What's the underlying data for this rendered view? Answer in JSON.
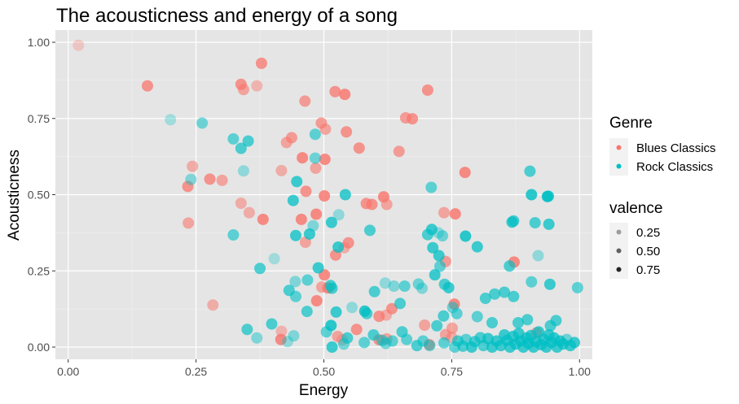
{
  "chart_data": {
    "type": "scatter",
    "title": "The acousticness and energy of a song",
    "xlabel": "Energy",
    "ylabel": "Acousticness",
    "xlim": [
      -0.025,
      1.025
    ],
    "ylim": [
      -0.04,
      1.04
    ],
    "x_ticks": [
      0,
      0.25,
      0.5,
      0.75,
      1.0
    ],
    "x_tick_labels": [
      "0.00",
      "0.25",
      "0.50",
      "0.75",
      "1.00"
    ],
    "y_ticks": [
      0,
      0.25,
      0.5,
      0.75,
      1.0
    ],
    "y_tick_labels": [
      "0.00",
      "0.25",
      "0.50",
      "0.75",
      "1.00"
    ],
    "grid": true,
    "panel_background": "#E5E5E5",
    "legend": {
      "position": "right",
      "color_title": "Genre",
      "alpha_title": "valence",
      "alpha_levels": [
        {
          "label": "0.25",
          "alpha": 0.35
        },
        {
          "label": "0.50",
          "alpha": 0.6
        },
        {
          "label": "0.75",
          "alpha": 0.85
        }
      ]
    },
    "series": [
      {
        "name": "Blues Classics",
        "color": "#F8766D",
        "points": [
          [
            0.02,
            0.99,
            0.2
          ],
          [
            0.155,
            0.857,
            0.8
          ],
          [
            0.378,
            0.931,
            0.8
          ],
          [
            0.338,
            0.862,
            0.8
          ],
          [
            0.343,
            0.845,
            0.6
          ],
          [
            0.369,
            0.857,
            0.4
          ],
          [
            0.463,
            0.807,
            0.7
          ],
          [
            0.522,
            0.838,
            0.8
          ],
          [
            0.541,
            0.829,
            0.9
          ],
          [
            0.703,
            0.843,
            0.8
          ],
          [
            0.66,
            0.752,
            0.7
          ],
          [
            0.673,
            0.749,
            0.8
          ],
          [
            0.495,
            0.735,
            0.7
          ],
          [
            0.503,
            0.715,
            0.6
          ],
          [
            0.544,
            0.706,
            0.8
          ],
          [
            0.437,
            0.687,
            0.7
          ],
          [
            0.427,
            0.671,
            0.6
          ],
          [
            0.569,
            0.653,
            0.8
          ],
          [
            0.647,
            0.642,
            0.7
          ],
          [
            0.458,
            0.621,
            0.9
          ],
          [
            0.502,
            0.616,
            0.9
          ],
          [
            0.484,
            0.587,
            0.6
          ],
          [
            0.243,
            0.593,
            0.5
          ],
          [
            0.417,
            0.579,
            0.5
          ],
          [
            0.776,
            0.573,
            0.9
          ],
          [
            0.277,
            0.551,
            0.8
          ],
          [
            0.301,
            0.547,
            0.6
          ],
          [
            0.234,
            0.527,
            0.8
          ],
          [
            0.465,
            0.511,
            0.8
          ],
          [
            0.501,
            0.496,
            0.9
          ],
          [
            0.338,
            0.472,
            0.5
          ],
          [
            0.583,
            0.471,
            0.8
          ],
          [
            0.594,
            0.468,
            0.8
          ],
          [
            0.617,
            0.493,
            0.9
          ],
          [
            0.623,
            0.468,
            0.6
          ],
          [
            0.354,
            0.441,
            0.5
          ],
          [
            0.735,
            0.441,
            0.6
          ],
          [
            0.757,
            0.437,
            0.9
          ],
          [
            0.485,
            0.436,
            0.9
          ],
          [
            0.381,
            0.419,
            0.9
          ],
          [
            0.456,
            0.419,
            0.9
          ],
          [
            0.235,
            0.407,
            0.6
          ],
          [
            0.464,
            0.344,
            0.6
          ],
          [
            0.548,
            0.342,
            0.8
          ],
          [
            0.54,
            0.326,
            0.5
          ],
          [
            0.523,
            0.302,
            0.8
          ],
          [
            0.738,
            0.281,
            0.7
          ],
          [
            0.872,
            0.279,
            0.9
          ],
          [
            0.501,
            0.237,
            0.9
          ],
          [
            0.496,
            0.197,
            0.6
          ],
          [
            0.508,
            0.194,
            0.9
          ],
          [
            0.283,
            0.138,
            0.5
          ],
          [
            0.755,
            0.141,
            0.9
          ],
          [
            0.486,
            0.152,
            0.9
          ],
          [
            0.633,
            0.126,
            0.8
          ],
          [
            0.608,
            0.101,
            0.8
          ],
          [
            0.622,
            0.105,
            0.5
          ],
          [
            0.564,
            0.058,
            0.8
          ],
          [
            0.417,
            0.052,
            0.4
          ],
          [
            0.751,
            0.062,
            0.6
          ],
          [
            0.738,
            0.041,
            0.6
          ],
          [
            0.416,
            0.025,
            0.9
          ],
          [
            0.527,
            0.035,
            0.6
          ],
          [
            0.536,
            0.024,
            0.4
          ],
          [
            0.608,
            0.024,
            0.8
          ],
          [
            0.623,
            0.027,
            0.6
          ],
          [
            0.697,
            0.072,
            0.6
          ],
          [
            0.706,
            0.008,
            0.8
          ],
          [
            0.916,
            0.047,
            0.7
          ],
          [
            0.75,
            0.032,
            0.5
          ]
        ]
      },
      {
        "name": "Rock Classics",
        "color": "#00BFC4",
        "points": [
          [
            0.2,
            0.746,
            0.2
          ],
          [
            0.262,
            0.735,
            0.5
          ],
          [
            0.323,
            0.683,
            0.6
          ],
          [
            0.338,
            0.652,
            0.7
          ],
          [
            0.352,
            0.676,
            0.7
          ],
          [
            0.483,
            0.698,
            0.6
          ],
          [
            0.483,
            0.62,
            0.5
          ],
          [
            0.24,
            0.55,
            0.4
          ],
          [
            0.343,
            0.578,
            0.3
          ],
          [
            0.447,
            0.543,
            0.8
          ],
          [
            0.44,
            0.481,
            0.8
          ],
          [
            0.542,
            0.5,
            0.8
          ],
          [
            0.71,
            0.524,
            0.6
          ],
          [
            0.479,
            0.398,
            0.4
          ],
          [
            0.515,
            0.409,
            0.8
          ],
          [
            0.529,
            0.434,
            0.3
          ],
          [
            0.59,
            0.383,
            0.7
          ],
          [
            0.323,
            0.368,
            0.6
          ],
          [
            0.445,
            0.366,
            0.8
          ],
          [
            0.472,
            0.371,
            0.8
          ],
          [
            0.703,
            0.369,
            0.7
          ],
          [
            0.711,
            0.386,
            0.8
          ],
          [
            0.724,
            0.375,
            0.3
          ],
          [
            0.732,
            0.365,
            0.5
          ],
          [
            0.777,
            0.364,
            0.9
          ],
          [
            0.8,
            0.329,
            0.8
          ],
          [
            0.868,
            0.41,
            0.8
          ],
          [
            0.871,
            0.414,
            0.7
          ],
          [
            0.913,
            0.408,
            0.7
          ],
          [
            0.94,
            0.403,
            0.8
          ],
          [
            0.903,
            0.577,
            0.7
          ],
          [
            0.906,
            0.5,
            0.9
          ],
          [
            0.937,
            0.494,
            0.9
          ],
          [
            0.939,
            0.495,
            0.8
          ],
          [
            0.713,
            0.326,
            0.8
          ],
          [
            0.725,
            0.3,
            0.8
          ],
          [
            0.528,
            0.328,
            0.8
          ],
          [
            0.403,
            0.29,
            0.2
          ],
          [
            0.375,
            0.258,
            0.7
          ],
          [
            0.489,
            0.26,
            0.8
          ],
          [
            0.727,
            0.265,
            0.6
          ],
          [
            0.717,
            0.237,
            0.8
          ],
          [
            0.863,
            0.266,
            0.7
          ],
          [
            0.919,
            0.3,
            0.3
          ],
          [
            0.468,
            0.22,
            0.6
          ],
          [
            0.444,
            0.215,
            0.4
          ],
          [
            0.432,
            0.186,
            0.7
          ],
          [
            0.445,
            0.166,
            0.6
          ],
          [
            0.513,
            0.202,
            0.7
          ],
          [
            0.516,
            0.193,
            0.7
          ],
          [
            0.599,
            0.182,
            0.7
          ],
          [
            0.62,
            0.21,
            0.3
          ],
          [
            0.637,
            0.2,
            0.4
          ],
          [
            0.658,
            0.2,
            0.6
          ],
          [
            0.685,
            0.207,
            0.5
          ],
          [
            0.692,
            0.193,
            0.4
          ],
          [
            0.736,
            0.206,
            0.7
          ],
          [
            0.744,
            0.195,
            0.8
          ],
          [
            0.906,
            0.214,
            0.6
          ],
          [
            0.942,
            0.206,
            0.8
          ],
          [
            0.996,
            0.195,
            0.6
          ],
          [
            0.816,
            0.16,
            0.7
          ],
          [
            0.834,
            0.174,
            0.7
          ],
          [
            0.853,
            0.18,
            0.7
          ],
          [
            0.871,
            0.166,
            0.7
          ],
          [
            0.467,
            0.117,
            0.7
          ],
          [
            0.524,
            0.115,
            0.8
          ],
          [
            0.555,
            0.13,
            0.3
          ],
          [
            0.58,
            0.118,
            0.9
          ],
          [
            0.584,
            0.11,
            0.7
          ],
          [
            0.649,
            0.143,
            0.7
          ],
          [
            0.734,
            0.102,
            0.7
          ],
          [
            0.752,
            0.13,
            0.5
          ],
          [
            0.76,
            0.11,
            0.6
          ],
          [
            0.8,
            0.1,
            0.6
          ],
          [
            0.829,
            0.08,
            0.7
          ],
          [
            0.88,
            0.08,
            0.7
          ],
          [
            0.898,
            0.09,
            0.7
          ],
          [
            0.943,
            0.07,
            0.7
          ],
          [
            0.954,
            0.087,
            0.7
          ],
          [
            0.35,
            0.058,
            0.7
          ],
          [
            0.369,
            0.03,
            0.4
          ],
          [
            0.398,
            0.076,
            0.7
          ],
          [
            0.429,
            0.018,
            0.3
          ],
          [
            0.441,
            0.037,
            0.4
          ],
          [
            0.505,
            0.05,
            0.6
          ],
          [
            0.514,
            0.071,
            0.9
          ],
          [
            0.516,
            0.0,
            0.8
          ],
          [
            0.539,
            0.01,
            0.5
          ],
          [
            0.546,
            0.03,
            0.7
          ],
          [
            0.579,
            0.015,
            0.6
          ],
          [
            0.597,
            0.04,
            0.7
          ],
          [
            0.614,
            0.022,
            0.6
          ],
          [
            0.621,
            0.012,
            0.5
          ],
          [
            0.634,
            0.02,
            0.6
          ],
          [
            0.653,
            0.05,
            0.7
          ],
          [
            0.662,
            0.025,
            0.6
          ],
          [
            0.682,
            0.005,
            0.7
          ],
          [
            0.694,
            0.02,
            0.6
          ],
          [
            0.707,
            0.005,
            0.5
          ],
          [
            0.721,
            0.07,
            0.7
          ],
          [
            0.735,
            0.014,
            0.6
          ],
          [
            0.756,
            0.0,
            0.6
          ],
          [
            0.762,
            0.02,
            0.7
          ],
          [
            0.772,
            0.003,
            0.7
          ],
          [
            0.778,
            0.025,
            0.6
          ],
          [
            0.789,
            0.0,
            0.8
          ],
          [
            0.795,
            0.018,
            0.7
          ],
          [
            0.806,
            0.031,
            0.7
          ],
          [
            0.812,
            0.005,
            0.7
          ],
          [
            0.821,
            0.028,
            0.8
          ],
          [
            0.829,
            0.0,
            0.8
          ],
          [
            0.838,
            0.02,
            0.8
          ],
          [
            0.846,
            0.005,
            0.8
          ],
          [
            0.853,
            0.04,
            0.8
          ],
          [
            0.858,
            0.022,
            0.8
          ],
          [
            0.864,
            0.0,
            0.8
          ],
          [
            0.87,
            0.035,
            0.8
          ],
          [
            0.875,
            0.01,
            0.8
          ],
          [
            0.881,
            0.045,
            0.8
          ],
          [
            0.885,
            0.02,
            0.8
          ],
          [
            0.89,
            0.0,
            0.8
          ],
          [
            0.896,
            0.03,
            0.8
          ],
          [
            0.9,
            0.012,
            0.8
          ],
          [
            0.905,
            0.038,
            0.8
          ],
          [
            0.91,
            0.0,
            0.8
          ],
          [
            0.915,
            0.018,
            0.8
          ],
          [
            0.92,
            0.05,
            0.8
          ],
          [
            0.925,
            0.008,
            0.8
          ],
          [
            0.93,
            0.025,
            0.8
          ],
          [
            0.935,
            0.0,
            0.8
          ],
          [
            0.94,
            0.04,
            0.8
          ],
          [
            0.945,
            0.015,
            0.8
          ],
          [
            0.95,
            0.03,
            0.8
          ],
          [
            0.956,
            0.0,
            0.8
          ],
          [
            0.962,
            0.02,
            0.8
          ],
          [
            0.968,
            0.01,
            0.8
          ],
          [
            0.975,
            0.025,
            0.5
          ],
          [
            0.982,
            0.005,
            0.8
          ],
          [
            0.99,
            0.015,
            0.8
          ]
        ]
      }
    ]
  }
}
